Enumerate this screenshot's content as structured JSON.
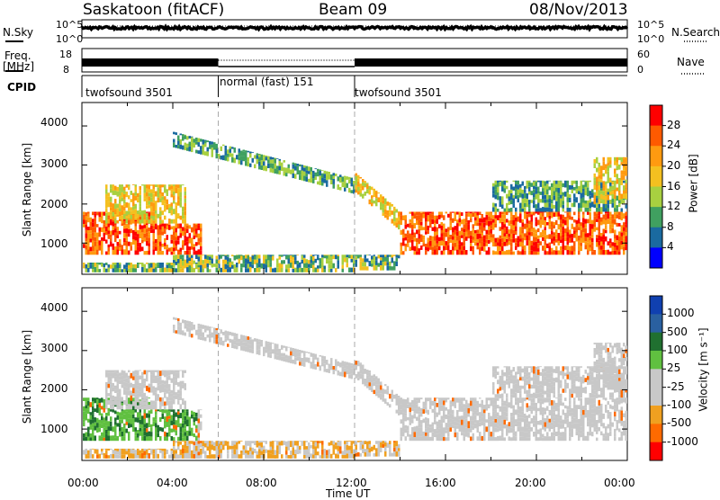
{
  "header": {
    "radar_title": "Saskatoon (fitACF)",
    "beam": "Beam 09",
    "date": "08/Nov/2013"
  },
  "top_panels": {
    "nsky_label": "N.Sky",
    "nsky_ticks": [
      "10^5",
      "10^0"
    ],
    "nsearch_label": "N.Search",
    "nsearch_ticks": [
      "10^5",
      "10^0"
    ],
    "freq_label_1": "Freq.",
    "freq_label_2": "[MHz]",
    "freq_ticks": [
      "18",
      "8"
    ],
    "nave_label": "Nave",
    "nave_ticks": [
      "60",
      "0"
    ],
    "cpid_label": "CPID",
    "cpid_segments": [
      {
        "label": "twofsound 3501",
        "start_h": 0,
        "end_h": 6
      },
      {
        "label": "normal (fast) 151",
        "start_h": 6,
        "end_h": 12
      },
      {
        "label": "twofsound 3501",
        "start_h": 12,
        "end_h": 24
      }
    ]
  },
  "chart_data": [
    {
      "type": "heatmap",
      "name": "power",
      "ylabel": "Slant Range [km]",
      "yticks": [
        "4000",
        "3000",
        "2000",
        "1000"
      ],
      "ylim": [
        200,
        4600
      ],
      "xlim": [
        0,
        24
      ],
      "colorbar_label": "Power [dB]",
      "colorbar_ticks": [
        "28",
        "24",
        "20",
        "16",
        "12",
        "8",
        "4"
      ],
      "colorbar_colors": [
        "#ff0000",
        "#ff5a00",
        "#ff9a10",
        "#f4c020",
        "#a8d040",
        "#40a060",
        "#1a6aa0",
        "#0000ff"
      ]
    },
    {
      "type": "heatmap",
      "name": "velocity",
      "ylabel": "Slant Range [km]",
      "yticks": [
        "4000",
        "3000",
        "2000",
        "1000"
      ],
      "ylim": [
        200,
        4600
      ],
      "xlim": [
        0,
        24
      ],
      "xlabel": "Time UT",
      "xticks": [
        "00:00",
        "04:00",
        "08:00",
        "12:00",
        "16:00",
        "20:00",
        "00:00"
      ],
      "colorbar_label": "Velocity [m s⁻¹]",
      "colorbar_ticks": [
        "1000",
        "500",
        "100",
        "25",
        "-25",
        "-100",
        "-500",
        "-1000"
      ],
      "colorbar_colors": [
        "#1040b0",
        "#2a60a0",
        "#207030",
        "#60c040",
        "#c8c8c8",
        "#c8c8c8",
        "#f0a020",
        "#ff6a00",
        "#ff0000"
      ]
    }
  ]
}
